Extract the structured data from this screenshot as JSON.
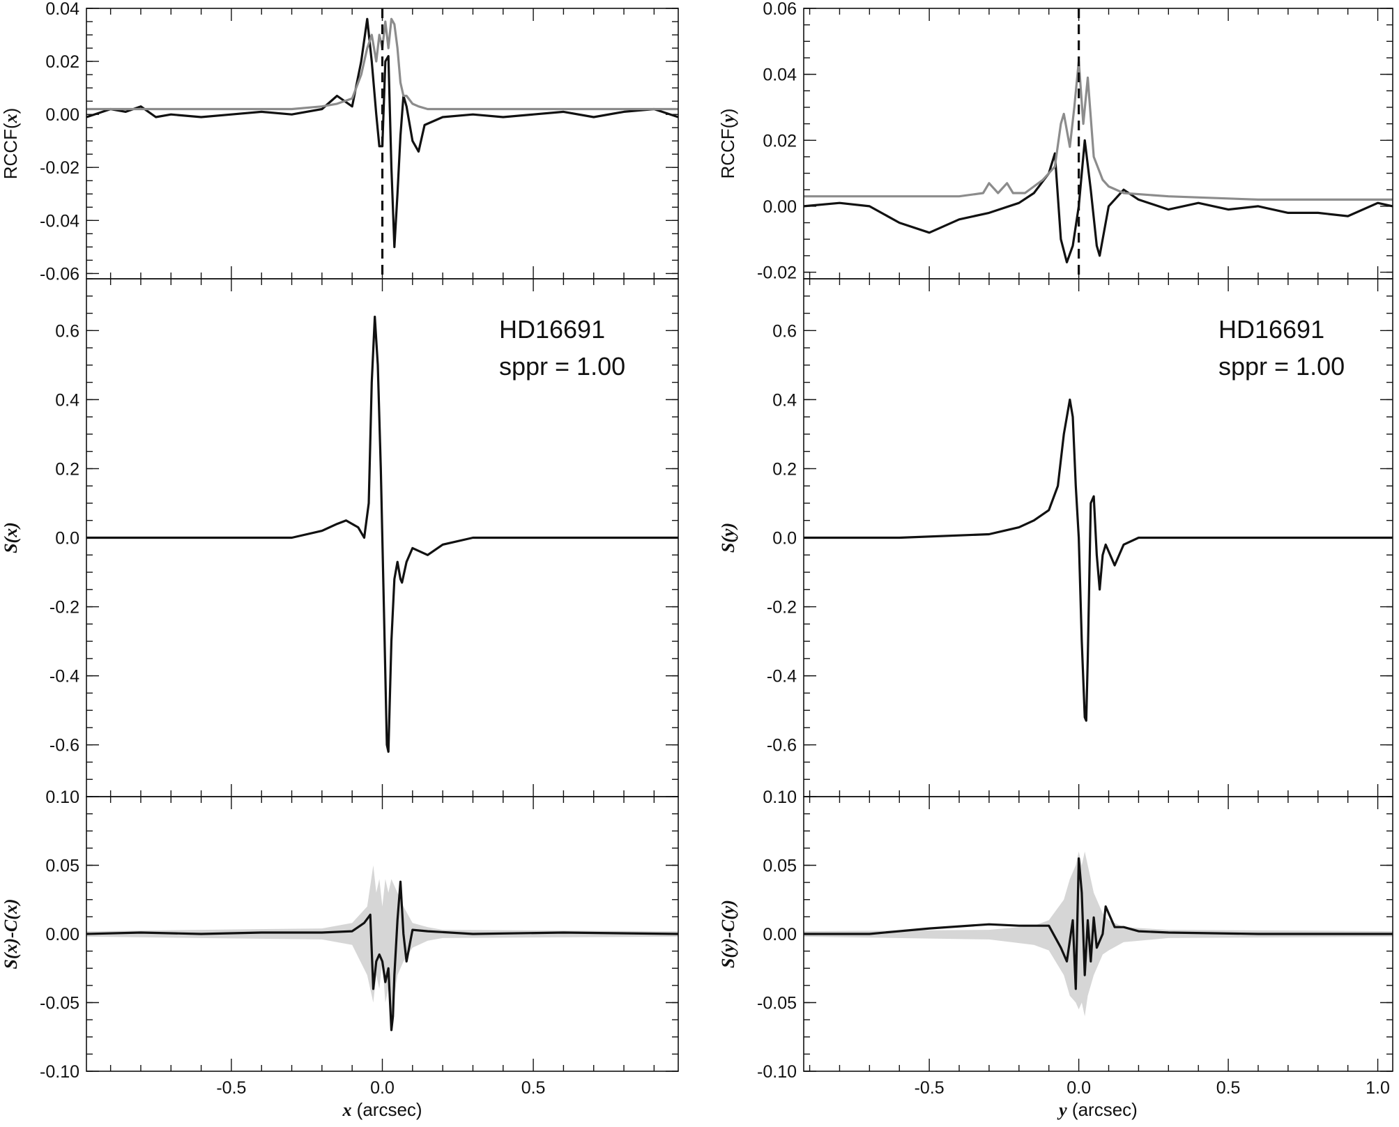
{
  "chart_data": [
    {
      "type": "line",
      "panel": "left-top",
      "ylabel_parts": [
        "RCCF(",
        "x",
        ")"
      ],
      "xlim": [
        -0.98,
        0.98
      ],
      "ylim": [
        -0.062,
        0.04
      ],
      "yticks": [
        -0.06,
        -0.04,
        -0.02,
        0.0,
        0.02,
        0.04
      ],
      "ytick_labels": [
        "-0.06",
        "-0.04",
        "-0.02",
        "0.00",
        "0.02",
        "0.04"
      ],
      "vline": 0.0,
      "series": [
        {
          "color": "#111111",
          "x": [
            -0.98,
            -0.9,
            -0.85,
            -0.8,
            -0.75,
            -0.7,
            -0.6,
            -0.5,
            -0.4,
            -0.3,
            -0.2,
            -0.15,
            -0.1,
            -0.07,
            -0.05,
            -0.035,
            -0.02,
            -0.01,
            0.0,
            0.01,
            0.02,
            0.03,
            0.04,
            0.05,
            0.06,
            0.07,
            0.08,
            0.1,
            0.12,
            0.14,
            0.2,
            0.3,
            0.4,
            0.5,
            0.6,
            0.7,
            0.8,
            0.9,
            0.98
          ],
          "y": [
            -0.001,
            0.002,
            0.001,
            0.003,
            -0.001,
            0.0,
            -0.001,
            0.0,
            0.001,
            0.0,
            0.002,
            0.007,
            0.003,
            0.02,
            0.036,
            0.02,
            0.0,
            -0.012,
            -0.012,
            0.02,
            0.022,
            -0.02,
            -0.05,
            -0.03,
            -0.008,
            0.007,
            0.003,
            -0.01,
            -0.014,
            -0.004,
            -0.001,
            0.0,
            -0.001,
            0.0,
            0.001,
            -0.001,
            0.001,
            0.002,
            -0.001
          ]
        },
        {
          "color": "#8c8c8c",
          "x": [
            -0.98,
            -0.6,
            -0.3,
            -0.2,
            -0.15,
            -0.1,
            -0.07,
            -0.05,
            -0.035,
            -0.02,
            -0.01,
            0.0,
            0.01,
            0.02,
            0.03,
            0.04,
            0.05,
            0.06,
            0.07,
            0.08,
            0.1,
            0.12,
            0.15,
            0.2,
            0.3,
            0.6,
            0.98
          ],
          "y": [
            0.002,
            0.002,
            0.002,
            0.003,
            0.004,
            0.006,
            0.015,
            0.025,
            0.03,
            0.02,
            0.03,
            0.025,
            0.035,
            0.025,
            0.036,
            0.034,
            0.025,
            0.012,
            0.007,
            0.007,
            0.004,
            0.003,
            0.002,
            0.002,
            0.002,
            0.002,
            0.002
          ]
        }
      ]
    },
    {
      "type": "line",
      "panel": "left-middle",
      "ylabel_parts": [
        "S(",
        "x",
        ")"
      ],
      "xlim": [
        -0.98,
        0.98
      ],
      "ylim": [
        -0.75,
        0.75
      ],
      "yticks": [
        -0.6,
        -0.4,
        -0.2,
        0.0,
        0.2,
        0.4,
        0.6
      ],
      "ytick_labels": [
        "-0.6",
        "-0.4",
        "-0.2",
        "0.0",
        "0.2",
        "0.4",
        "0.6"
      ],
      "annotation": [
        "HD16691",
        "sppr = 1.00"
      ],
      "series": [
        {
          "color": "#111111",
          "x": [
            -0.98,
            -0.6,
            -0.3,
            -0.2,
            -0.15,
            -0.12,
            -0.1,
            -0.08,
            -0.06,
            -0.045,
            -0.035,
            -0.025,
            -0.015,
            -0.005,
            0.0,
            0.005,
            0.015,
            0.02,
            0.03,
            0.04,
            0.05,
            0.06,
            0.065,
            0.08,
            0.1,
            0.15,
            0.2,
            0.3,
            0.6,
            0.98
          ],
          "y": [
            0.0,
            0.0,
            0.0,
            0.02,
            0.04,
            0.05,
            0.04,
            0.03,
            0.0,
            0.1,
            0.45,
            0.64,
            0.5,
            0.2,
            0.0,
            -0.2,
            -0.6,
            -0.62,
            -0.3,
            -0.12,
            -0.07,
            -0.12,
            -0.13,
            -0.07,
            -0.03,
            -0.05,
            -0.02,
            0.0,
            0.0,
            0.0
          ]
        }
      ]
    },
    {
      "type": "line",
      "panel": "left-bottom",
      "ylabel_parts": [
        "S(",
        "x",
        ")-C(",
        "x",
        ")"
      ],
      "xlim": [
        -0.98,
        0.98
      ],
      "ylim": [
        -0.1,
        0.1
      ],
      "yticks": [
        -0.1,
        -0.05,
        0.0,
        0.05,
        0.1
      ],
      "ytick_labels": [
        "-0.10",
        "-0.05",
        "0.00",
        "0.05",
        "0.10"
      ],
      "xticks": [
        -0.5,
        0.0,
        0.5
      ],
      "xtick_labels": [
        "-0.5",
        "0.0",
        "0.5"
      ],
      "xlabel_parts": [
        "x",
        " (arcsec)"
      ],
      "band": {
        "x": [
          -0.98,
          -0.2,
          -0.1,
          -0.05,
          -0.03,
          -0.02,
          -0.01,
          0.0,
          0.01,
          0.02,
          0.03,
          0.05,
          0.07,
          0.1,
          0.15,
          0.2,
          0.98
        ],
        "upper": [
          0.002,
          0.004,
          0.008,
          0.02,
          0.05,
          0.03,
          0.04,
          0.02,
          0.04,
          0.03,
          0.04,
          0.03,
          0.02,
          0.008,
          0.005,
          0.003,
          0.002
        ],
        "lower": [
          -0.002,
          -0.004,
          -0.008,
          -0.03,
          -0.05,
          -0.03,
          -0.04,
          -0.02,
          -0.05,
          -0.04,
          -0.06,
          -0.03,
          -0.02,
          -0.01,
          -0.005,
          -0.003,
          -0.002
        ]
      },
      "series": [
        {
          "color": "#111111",
          "x": [
            -0.98,
            -0.8,
            -0.6,
            -0.4,
            -0.2,
            -0.1,
            -0.06,
            -0.04,
            -0.03,
            -0.02,
            -0.01,
            0.0,
            0.01,
            0.02,
            0.03,
            0.035,
            0.04,
            0.05,
            0.06,
            0.07,
            0.08,
            0.1,
            0.15,
            0.3,
            0.6,
            0.98
          ],
          "y": [
            0.0,
            0.001,
            0.0,
            0.001,
            0.001,
            0.002,
            0.008,
            0.014,
            -0.04,
            -0.02,
            -0.015,
            -0.02,
            -0.035,
            -0.025,
            -0.07,
            -0.06,
            -0.03,
            0.01,
            0.038,
            0.0,
            -0.02,
            0.003,
            0.002,
            0.0,
            0.001,
            0.0
          ]
        }
      ]
    },
    {
      "type": "line",
      "panel": "right-top",
      "ylabel_parts": [
        "RCCF(",
        "y",
        ")"
      ],
      "xlim": [
        -0.92,
        1.05
      ],
      "ylim": [
        -0.022,
        0.06
      ],
      "yticks": [
        -0.02,
        0.0,
        0.02,
        0.04,
        0.06
      ],
      "ytick_labels": [
        "-0.02",
        "0.00",
        "0.02",
        "0.04",
        "0.06"
      ],
      "vline": 0.0,
      "series": [
        {
          "color": "#111111",
          "x": [
            -0.92,
            -0.8,
            -0.7,
            -0.6,
            -0.5,
            -0.45,
            -0.4,
            -0.3,
            -0.2,
            -0.15,
            -0.1,
            -0.08,
            -0.06,
            -0.04,
            -0.02,
            0.0,
            0.02,
            0.04,
            0.06,
            0.07,
            0.1,
            0.15,
            0.2,
            0.3,
            0.4,
            0.5,
            0.6,
            0.7,
            0.8,
            0.9,
            1.0,
            1.05
          ],
          "y": [
            0.0,
            0.001,
            0.0,
            -0.005,
            -0.008,
            -0.006,
            -0.004,
            -0.002,
            0.001,
            0.004,
            0.01,
            0.016,
            -0.01,
            -0.017,
            -0.012,
            0.0,
            0.02,
            0.005,
            -0.012,
            -0.015,
            0.0,
            0.005,
            0.002,
            -0.001,
            0.001,
            -0.001,
            0.0,
            -0.002,
            -0.002,
            -0.003,
            0.001,
            0.0
          ]
        },
        {
          "color": "#8c8c8c",
          "x": [
            -0.92,
            -0.6,
            -0.4,
            -0.32,
            -0.3,
            -0.27,
            -0.24,
            -0.22,
            -0.18,
            -0.12,
            -0.08,
            -0.06,
            -0.05,
            -0.03,
            -0.015,
            0.0,
            0.015,
            0.03,
            0.05,
            0.08,
            0.1,
            0.15,
            0.3,
            0.6,
            1.05
          ],
          "y": [
            0.003,
            0.003,
            0.003,
            0.004,
            0.007,
            0.004,
            0.007,
            0.004,
            0.004,
            0.008,
            0.012,
            0.025,
            0.028,
            0.018,
            0.03,
            0.044,
            0.025,
            0.039,
            0.015,
            0.008,
            0.006,
            0.004,
            0.003,
            0.002,
            0.002
          ]
        }
      ]
    },
    {
      "type": "line",
      "panel": "right-middle",
      "ylabel_parts": [
        "S(",
        "y",
        ")"
      ],
      "xlim": [
        -0.92,
        1.05
      ],
      "ylim": [
        -0.75,
        0.75
      ],
      "yticks": [
        -0.6,
        -0.4,
        -0.2,
        0.0,
        0.2,
        0.4,
        0.6
      ],
      "ytick_labels": [
        "-0.6",
        "-0.4",
        "-0.2",
        "0.0",
        "0.2",
        "0.4",
        "0.6"
      ],
      "annotation": [
        "HD16691",
        "sppr = 1.00"
      ],
      "series": [
        {
          "color": "#111111",
          "x": [
            -0.92,
            -0.6,
            -0.3,
            -0.2,
            -0.15,
            -0.1,
            -0.07,
            -0.05,
            -0.03,
            -0.02,
            -0.01,
            0.0,
            0.01,
            0.02,
            0.025,
            0.03,
            0.04,
            0.05,
            0.06,
            0.07,
            0.08,
            0.09,
            0.1,
            0.12,
            0.15,
            0.2,
            0.3,
            0.6,
            1.05
          ],
          "y": [
            0.0,
            0.0,
            0.01,
            0.03,
            0.05,
            0.08,
            0.15,
            0.3,
            0.4,
            0.35,
            0.15,
            0.0,
            -0.3,
            -0.52,
            -0.53,
            -0.35,
            0.1,
            0.12,
            -0.05,
            -0.15,
            -0.05,
            -0.02,
            -0.04,
            -0.08,
            -0.02,
            0.0,
            0.0,
            0.0,
            0.0
          ]
        }
      ]
    },
    {
      "type": "line",
      "panel": "right-bottom",
      "ylabel_parts": [
        "S(",
        "y",
        ")-C(",
        "y",
        ")"
      ],
      "xlim": [
        -0.92,
        1.05
      ],
      "ylim": [
        -0.1,
        0.1
      ],
      "yticks": [
        -0.1,
        -0.05,
        0.0,
        0.05,
        0.1
      ],
      "ytick_labels": [
        "-0.10",
        "-0.05",
        "0.00",
        "0.05",
        "0.10"
      ],
      "xticks": [
        -0.5,
        0.0,
        0.5,
        1.0
      ],
      "xtick_labels": [
        "-0.5",
        "0.0",
        "0.5",
        "1.0"
      ],
      "xlabel_parts": [
        "y",
        " (arcsec)"
      ],
      "band": {
        "x": [
          -0.92,
          -0.3,
          -0.15,
          -0.1,
          -0.05,
          -0.03,
          -0.01,
          0.0,
          0.01,
          0.02,
          0.03,
          0.05,
          0.08,
          0.1,
          0.15,
          0.3,
          1.05
        ],
        "upper": [
          0.002,
          0.003,
          0.006,
          0.01,
          0.025,
          0.04,
          0.05,
          0.06,
          0.05,
          0.06,
          0.05,
          0.03,
          0.015,
          0.01,
          0.005,
          0.003,
          0.002
        ],
        "lower": [
          -0.002,
          -0.004,
          -0.008,
          -0.012,
          -0.03,
          -0.045,
          -0.05,
          -0.055,
          -0.05,
          -0.06,
          -0.045,
          -0.03,
          -0.015,
          -0.012,
          -0.006,
          -0.003,
          -0.002
        ]
      },
      "series": [
        {
          "color": "#111111",
          "x": [
            -0.92,
            -0.7,
            -0.5,
            -0.3,
            -0.2,
            -0.1,
            -0.06,
            -0.04,
            -0.02,
            -0.01,
            0.0,
            0.01,
            0.02,
            0.03,
            0.04,
            0.05,
            0.06,
            0.08,
            0.09,
            0.1,
            0.12,
            0.15,
            0.2,
            0.3,
            0.6,
            1.05
          ],
          "y": [
            0.0,
            0.0,
            0.004,
            0.007,
            0.006,
            0.006,
            -0.01,
            -0.02,
            0.01,
            -0.04,
            0.055,
            0.03,
            -0.03,
            0.01,
            -0.02,
            0.012,
            -0.01,
            0.0,
            0.02,
            0.015,
            0.005,
            0.005,
            0.002,
            0.001,
            0.0,
            0.0
          ]
        }
      ]
    }
  ]
}
